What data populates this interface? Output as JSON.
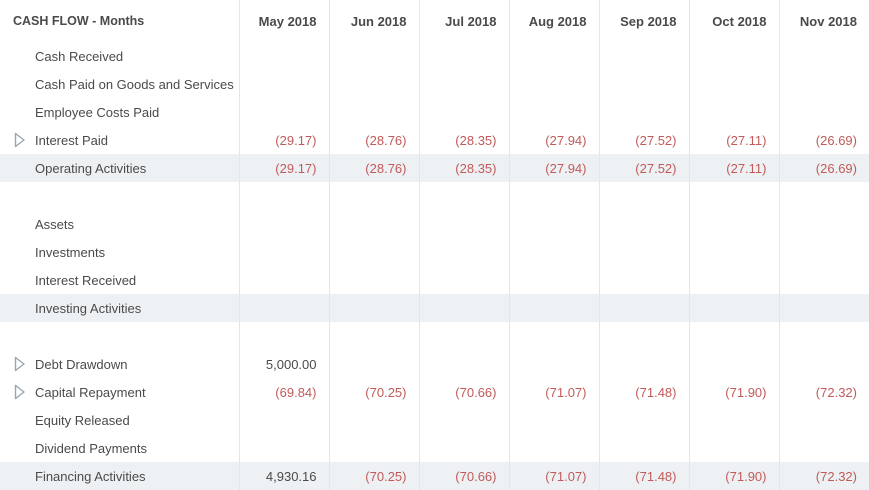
{
  "header": {
    "title": "CASH FLOW - Months",
    "months": [
      "May 2018",
      "Jun 2018",
      "Jul 2018",
      "Aug 2018",
      "Sep 2018",
      "Oct 2018",
      "Nov 2018"
    ]
  },
  "operating": {
    "rows": [
      {
        "label": "Cash Received",
        "values": [
          "",
          "",
          "",
          "",
          "",
          "",
          ""
        ]
      },
      {
        "label": "Cash Paid on Goods and Services",
        "values": [
          "",
          "",
          "",
          "",
          "",
          "",
          ""
        ]
      },
      {
        "label": "Employee Costs Paid",
        "values": [
          "",
          "",
          "",
          "",
          "",
          "",
          ""
        ]
      },
      {
        "label": "Interest Paid",
        "expandable": true,
        "values": [
          "(29.17)",
          "(28.76)",
          "(28.35)",
          "(27.94)",
          "(27.52)",
          "(27.11)",
          "(26.69)"
        ]
      }
    ],
    "total": {
      "label": "Operating Activities",
      "values": [
        "(29.17)",
        "(28.76)",
        "(28.35)",
        "(27.94)",
        "(27.52)",
        "(27.11)",
        "(26.69)"
      ]
    }
  },
  "investing": {
    "rows": [
      {
        "label": "Assets",
        "values": [
          "",
          "",
          "",
          "",
          "",
          "",
          ""
        ]
      },
      {
        "label": "Investments",
        "values": [
          "",
          "",
          "",
          "",
          "",
          "",
          ""
        ]
      },
      {
        "label": "Interest Received",
        "values": [
          "",
          "",
          "",
          "",
          "",
          "",
          ""
        ]
      }
    ],
    "total": {
      "label": "Investing Activities",
      "values": [
        "",
        "",
        "",
        "",
        "",
        "",
        ""
      ]
    }
  },
  "financing": {
    "rows": [
      {
        "label": "Debt Drawdown",
        "expandable": true,
        "values": [
          "5,000.00",
          "",
          "",
          "",
          "",
          "",
          ""
        ]
      },
      {
        "label": "Capital Repayment",
        "expandable": true,
        "values": [
          "(69.84)",
          "(70.25)",
          "(70.66)",
          "(71.07)",
          "(71.48)",
          "(71.90)",
          "(72.32)"
        ]
      },
      {
        "label": "Equity Released",
        "values": [
          "",
          "",
          "",
          "",
          "",
          "",
          ""
        ]
      },
      {
        "label": "Dividend Payments",
        "values": [
          "",
          "",
          "",
          "",
          "",
          "",
          ""
        ]
      }
    ],
    "total": {
      "label": "Financing Activities",
      "values": [
        "4,930.16",
        "(70.25)",
        "(70.66)",
        "(71.07)",
        "(71.48)",
        "(71.90)",
        "(72.32)"
      ]
    }
  },
  "colors": {
    "negative": "#c25a5a",
    "text": "#4a4a4a",
    "total_row_bg": "#eef1f4",
    "grid_line": "#e4e7ea"
  },
  "icons": {
    "expander": "triangle-right-outline-icon"
  }
}
